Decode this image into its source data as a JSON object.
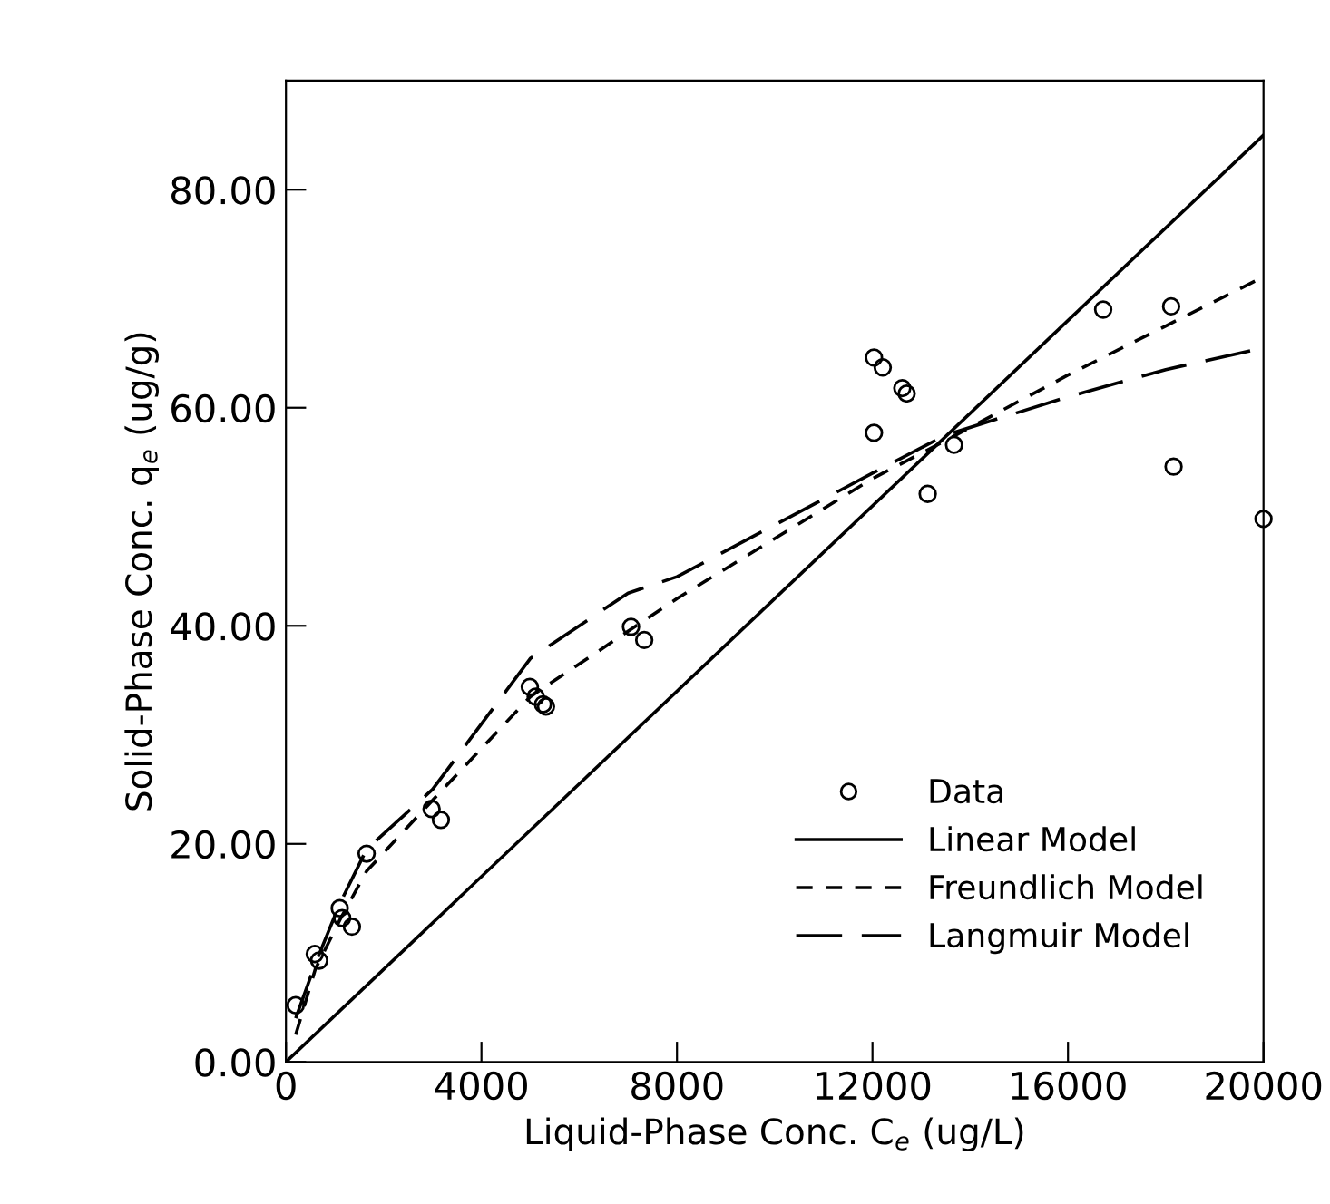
{
  "chart_data": {
    "type": "scatter",
    "xlabel": "Liquid-Phase Conc. C$_{e}$ (ug/L)",
    "ylabel": "Solid-Phase Conc. q$_{e}$ (ug/g)",
    "xlim": [
      0,
      20000
    ],
    "ylim": [
      0,
      90
    ],
    "xticks": [
      0,
      4000,
      8000,
      12000,
      16000,
      20000
    ],
    "yticks": [
      {
        "value": 0,
        "label": "0.00"
      },
      {
        "value": 20,
        "label": "20.00"
      },
      {
        "value": 40,
        "label": "40.00"
      },
      {
        "value": 60,
        "label": "60.00"
      },
      {
        "value": 80,
        "label": "80.00"
      }
    ],
    "legend": "bottom right",
    "grid": false,
    "series": [
      {
        "name": "Data",
        "marker": "circle",
        "color": "#000000",
        "x": [
          200,
          590,
          680,
          1100,
          1150,
          1350,
          1650,
          2980,
          3170,
          4990,
          5110,
          5260,
          5320,
          7060,
          7330,
          12030,
          12210,
          12610,
          12700,
          12030,
          13130,
          13670,
          16720,
          18110,
          18160,
          20000
        ],
        "values": [
          5.2,
          9.9,
          9.3,
          14.1,
          13.2,
          12.4,
          19.1,
          23.2,
          22.2,
          34.4,
          33.5,
          32.8,
          32.6,
          39.9,
          38.7,
          64.6,
          63.7,
          61.8,
          61.3,
          57.7,
          52.1,
          56.6,
          69.0,
          69.3,
          54.6,
          49.8
        ]
      },
      {
        "name": "Linear Model",
        "type": "line",
        "line_style": "solid",
        "color": "#000000",
        "x": [
          0,
          20000
        ],
        "values": [
          0,
          85
        ]
      },
      {
        "name": "Freundlich Model",
        "type": "line",
        "line_style": "dashed",
        "color": "#000000",
        "x": [
          200,
          600,
          1100,
          1650,
          3000,
          5000,
          8000,
          10000,
          12000,
          13500,
          16000,
          18000,
          20000
        ],
        "values": [
          2.5,
          8.5,
          13,
          17.5,
          24,
          33.5,
          42.5,
          48,
          53.5,
          57,
          63,
          67.5,
          72
        ]
      },
      {
        "name": "Langmuir Model",
        "type": "line",
        "line_style": "longdash",
        "color": "#000000",
        "x": [
          200,
          600,
          1100,
          1650,
          3000,
          5000,
          7000,
          8000,
          12000,
          13500,
          16000,
          18000,
          20000
        ],
        "values": [
          4,
          9,
          14.5,
          19.5,
          25,
          37,
          43,
          44.5,
          54,
          57.5,
          61,
          63.5,
          65.5
        ]
      }
    ]
  }
}
